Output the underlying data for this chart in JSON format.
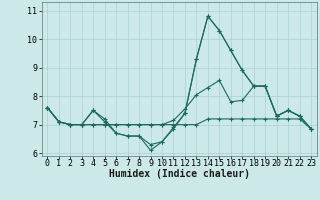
{
  "title": "",
  "xlabel": "Humidex (Indice chaleur)",
  "ylabel": "",
  "background_color": "#cce8e8",
  "grid_color": "#aad0d0",
  "line_color": "#1a6b5a",
  "xlim": [
    -0.5,
    23.5
  ],
  "ylim": [
    5.9,
    11.3
  ],
  "yticks": [
    6,
    7,
    8,
    9,
    10,
    11
  ],
  "xticks": [
    0,
    1,
    2,
    3,
    4,
    5,
    6,
    7,
    8,
    9,
    10,
    11,
    12,
    13,
    14,
    15,
    16,
    17,
    18,
    19,
    20,
    21,
    22,
    23
  ],
  "series": [
    [
      7.6,
      7.1,
      7.0,
      7.0,
      7.5,
      7.1,
      6.7,
      6.6,
      6.6,
      6.3,
      6.4,
      6.9,
      7.4,
      9.3,
      10.8,
      10.3,
      9.6,
      8.9,
      8.35,
      8.35,
      7.3,
      7.5,
      7.3,
      6.85
    ],
    [
      7.6,
      7.1,
      7.0,
      7.0,
      7.0,
      7.0,
      7.0,
      7.0,
      7.0,
      7.0,
      7.0,
      7.0,
      7.0,
      7.0,
      7.2,
      7.2,
      7.2,
      7.2,
      7.2,
      7.2,
      7.2,
      7.2,
      7.2,
      6.85
    ],
    [
      7.6,
      7.1,
      7.0,
      7.0,
      7.0,
      7.0,
      7.0,
      7.0,
      7.0,
      7.0,
      7.0,
      7.15,
      7.55,
      8.05,
      8.3,
      8.55,
      7.8,
      7.85,
      8.35,
      8.35,
      7.3,
      7.5,
      7.3,
      6.85
    ],
    [
      7.6,
      7.1,
      7.0,
      7.0,
      7.5,
      7.2,
      6.7,
      6.6,
      6.6,
      6.1,
      6.4,
      6.85,
      7.4,
      9.3,
      10.8,
      10.3,
      9.6,
      8.9,
      8.35,
      8.35,
      7.3,
      7.5,
      7.3,
      6.85
    ]
  ],
  "tick_fontsize": 6,
  "xlabel_fontsize": 7,
  "marker_size": 2.5,
  "line_width": 0.8
}
